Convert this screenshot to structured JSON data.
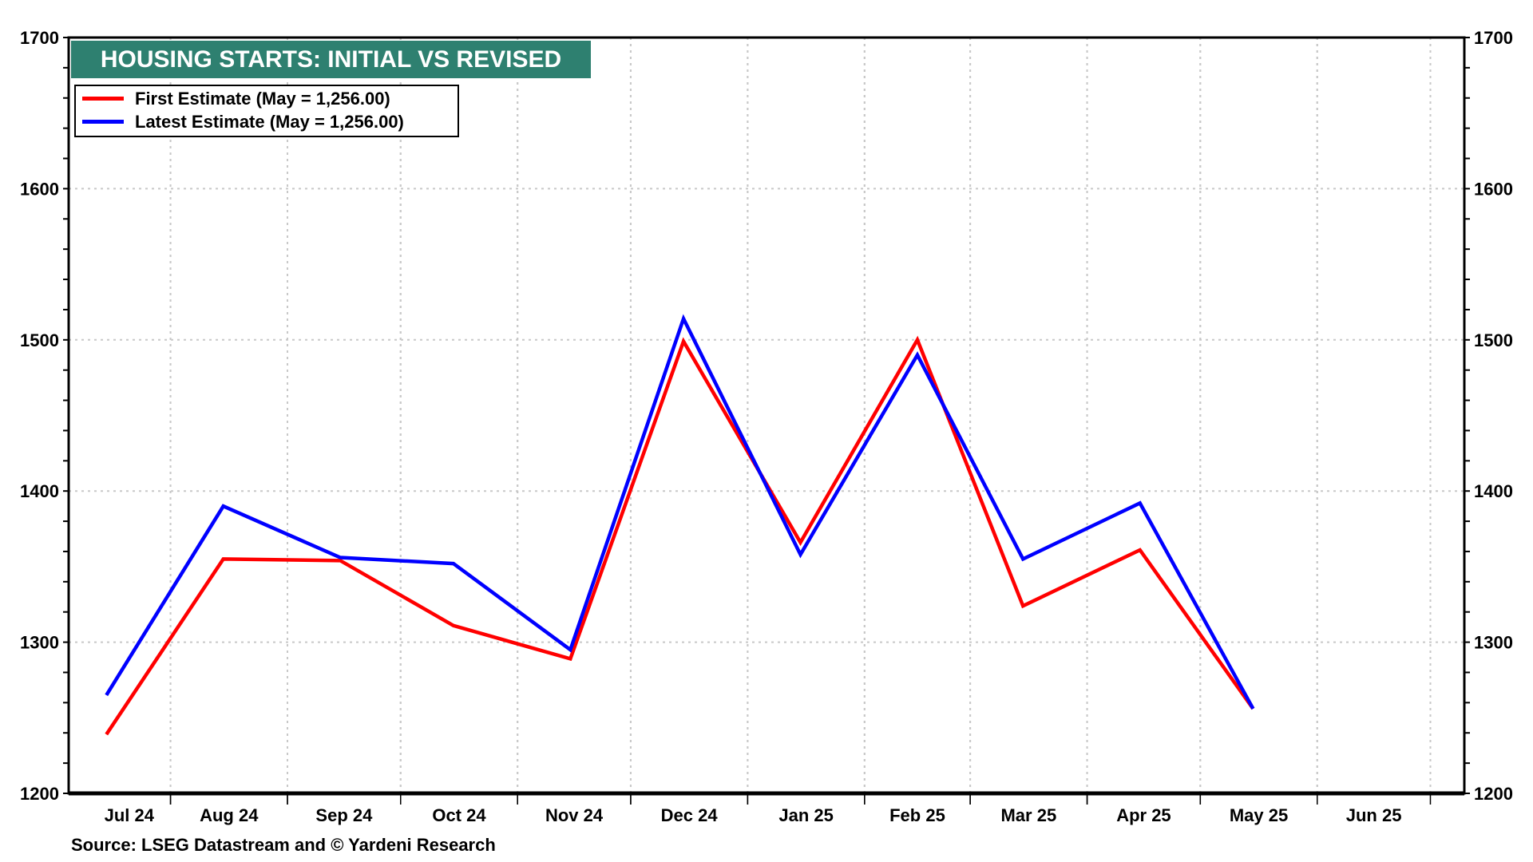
{
  "chart_data": {
    "type": "line",
    "title": "HOUSING STARTS: INITIAL VS REVISED",
    "x": [
      "2024-07-15",
      "2024-08-15",
      "2024-09-15",
      "2024-10-15",
      "2024-11-15",
      "2024-12-15",
      "2025-01-15",
      "2025-02-15",
      "2025-03-15",
      "2025-04-15",
      "2025-05-15"
    ],
    "series": [
      {
        "name": "First Estimate (May = 1,256.00)",
        "color": "#ff0000",
        "values": [
          1239,
          1355,
          1354,
          1311,
          1289,
          1499,
          1366,
          1500,
          1324,
          1361,
          1256
        ]
      },
      {
        "name": "Latest Estimate (May = 1,256.00)",
        "color": "#0000ff",
        "values": [
          1265,
          1390,
          1356,
          1352,
          1295,
          1514,
          1358,
          1490,
          1355,
          1392,
          1256
        ]
      }
    ],
    "xlim": [
      "2024-07-05",
      "2025-07-10"
    ],
    "ylim": [
      1200,
      1700
    ],
    "yticks": [
      1200,
      1300,
      1400,
      1500,
      1600,
      1700
    ],
    "ytick_labels": [
      "1200",
      "1300",
      "1400",
      "1500",
      "1600",
      "1700"
    ],
    "xtick_labels": [
      "Jul 24",
      "Aug 24",
      "Sep 24",
      "Oct 24",
      "Nov 24",
      "Dec 24",
      "Jan 25",
      "Feb 25",
      "Mar 25",
      "Apr 25",
      "May 25",
      "Jun 25"
    ],
    "xtick_months": [
      "2024-07",
      "2024-08",
      "2024-09",
      "2024-10",
      "2024-11",
      "2024-12",
      "2025-01",
      "2025-02",
      "2025-03",
      "2025-04",
      "2025-05",
      "2025-06"
    ],
    "grid": true,
    "legend_position": "top-left",
    "title_color": "#2e8070",
    "source": "Source: LSEG Datastream and © Yardeni Research"
  }
}
